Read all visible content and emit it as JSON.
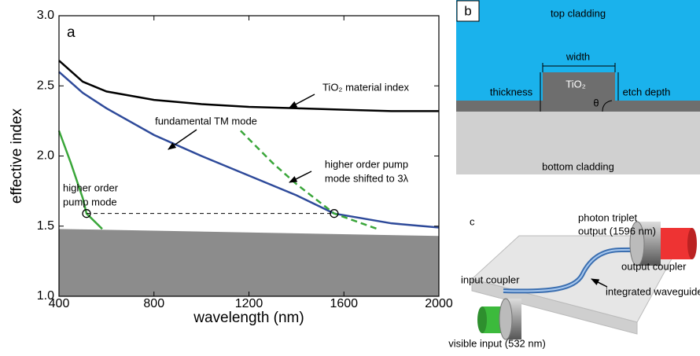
{
  "chart_data": {
    "type": "line",
    "panel_label": "a",
    "x_label": "wavelength (nm)",
    "y_label": "effective index",
    "xlim": [
      400,
      2000
    ],
    "xticks": [
      400,
      800,
      1200,
      1600,
      2000
    ],
    "ylim": [
      1.0,
      3.0
    ],
    "yticks": [
      {
        "value": 1.0,
        "label": "1.0"
      },
      {
        "value": 1.5,
        "label": "1.5"
      },
      {
        "value": 2.0,
        "label": "2.0"
      },
      {
        "value": 2.5,
        "label": "2.5"
      },
      {
        "value": 3.0,
        "label": "3.0"
      }
    ],
    "substrate": {
      "x": [
        400,
        2000
      ],
      "values": [
        1.48,
        1.43
      ],
      "color": "#8c8c8c"
    },
    "series": [
      {
        "name": "TiO₂ material index",
        "color": "#000000",
        "dash": false,
        "x": [
          400,
          500,
          600,
          800,
          1000,
          1200,
          1400,
          1600,
          1800,
          2000
        ],
        "values": [
          2.68,
          2.53,
          2.46,
          2.4,
          2.37,
          2.35,
          2.34,
          2.33,
          2.32,
          2.32
        ]
      },
      {
        "name": "fundamental TM mode",
        "color": "#2e4a9a",
        "dash": false,
        "x": [
          400,
          500,
          600,
          800,
          1000,
          1200,
          1400,
          1559,
          1800,
          2000
        ],
        "values": [
          2.6,
          2.45,
          2.34,
          2.15,
          2.0,
          1.86,
          1.72,
          1.59,
          1.52,
          1.49
        ]
      },
      {
        "name": [
          "higher order",
          "pump mode"
        ],
        "color": "#3aa63a",
        "dash": false,
        "x": [
          400,
          450,
          500,
          516,
          582
        ],
        "values": [
          2.18,
          1.95,
          1.7,
          1.59,
          1.48
        ]
      },
      {
        "name": [
          "higher order pump",
          "mode shifted to 3λ"
        ],
        "color": "#3aa63a",
        "dash": true,
        "x": [
          1165,
          1300,
          1400,
          1559,
          1741
        ],
        "values": [
          2.18,
          1.95,
          1.8,
          1.59,
          1.48
        ]
      }
    ],
    "phase_match": {
      "x": [
        516,
        1559
      ],
      "values": [
        1.59,
        1.59
      ]
    }
  },
  "panel_b": {
    "label": "b",
    "top": "top cladding",
    "bottom": "bottom cladding",
    "core": "TiO₂",
    "width": "width",
    "thickness": "thickness",
    "etch": "etch depth",
    "angle": "θ"
  },
  "panel_c": {
    "label": "c",
    "triplet": [
      "photon triplet",
      "output (1596 nm)"
    ],
    "output_coupler": "output coupler",
    "input_coupler": "input coupler",
    "waveguide": "integrated waveguide",
    "input": "visible input (532 nm)"
  }
}
